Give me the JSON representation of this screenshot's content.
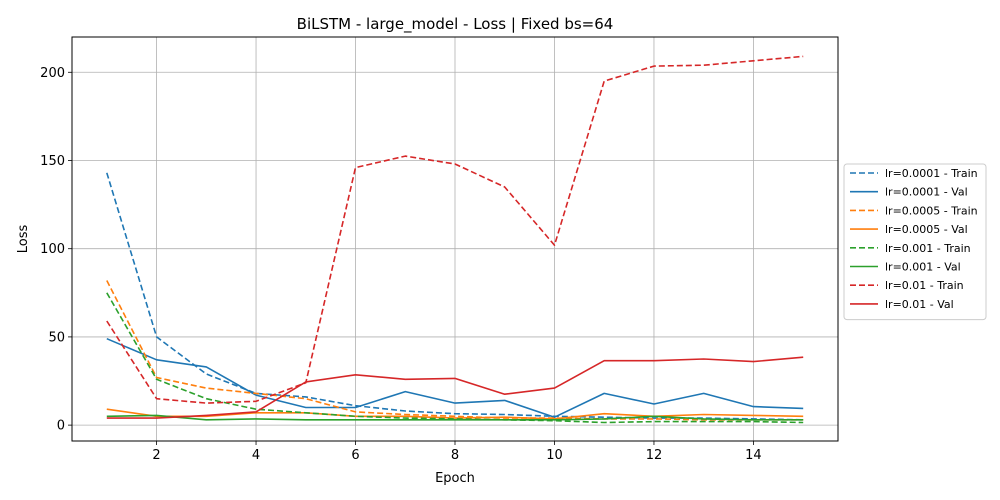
{
  "chart_data": {
    "type": "line",
    "title": "BiLSTM - large_model - Loss | Fixed bs=64",
    "xlabel": "Epoch",
    "ylabel": "Loss",
    "xlim": [
      0.3,
      15.7
    ],
    "ylim": [
      -9,
      220
    ],
    "xticks": [
      2,
      4,
      6,
      8,
      10,
      12,
      14
    ],
    "yticks": [
      0,
      50,
      100,
      150,
      200
    ],
    "grid": true,
    "legend_position": "outside-right",
    "x": [
      1,
      2,
      3,
      4,
      5,
      6,
      7,
      8,
      9,
      10,
      11,
      12,
      13,
      14,
      15
    ],
    "series": [
      {
        "name": "lr=0.0001 - Train",
        "color": "#1f77b4",
        "dash": true,
        "values": [
          143,
          50,
          29,
          18,
          16,
          11,
          8,
          6.5,
          6,
          5,
          4.5,
          4,
          4,
          3.5,
          3
        ]
      },
      {
        "name": "lr=0.0001 - Val",
        "color": "#1f77b4",
        "dash": false,
        "values": [
          49,
          37,
          33,
          17,
          10,
          10,
          19,
          12.5,
          14,
          4.5,
          18,
          12,
          18,
          10.5,
          9.5
        ]
      },
      {
        "name": "lr=0.0005 - Train",
        "color": "#ff7f0e",
        "dash": true,
        "values": [
          82,
          27,
          21,
          18,
          15,
          7.5,
          6,
          5,
          4,
          4,
          3.5,
          3.5,
          3,
          3,
          3
        ]
      },
      {
        "name": "lr=0.0005 - Val",
        "color": "#ff7f0e",
        "dash": false,
        "values": [
          9,
          5,
          5,
          7,
          7,
          5,
          5,
          4,
          4.5,
          3.5,
          6.5,
          5,
          6,
          5.5,
          5
        ]
      },
      {
        "name": "lr=0.001 - Train",
        "color": "#2ca02c",
        "dash": true,
        "values": [
          75,
          26,
          15,
          9,
          7,
          5,
          4,
          3.5,
          3,
          2.5,
          1.5,
          2,
          2,
          2,
          1.5
        ]
      },
      {
        "name": "lr=0.001 - Val",
        "color": "#2ca02c",
        "dash": false,
        "values": [
          5,
          5.5,
          3,
          3.5,
          3,
          3,
          3,
          3,
          3,
          3,
          3.5,
          5,
          3.5,
          3,
          3
        ]
      },
      {
        "name": "lr=0.01 - Train",
        "color": "#d62728",
        "dash": true,
        "values": [
          59,
          15,
          12.5,
          13.5,
          24,
          146,
          152.5,
          148,
          135,
          102,
          195,
          203.5,
          204,
          206.5,
          209
        ]
      },
      {
        "name": "lr=0.01 - Val",
        "color": "#d62728",
        "dash": false,
        "values": [
          4,
          4,
          5.5,
          7.5,
          24.5,
          28.5,
          26,
          26.5,
          17.5,
          21,
          36.5,
          36.5,
          37.5,
          36,
          38.5
        ]
      }
    ]
  }
}
